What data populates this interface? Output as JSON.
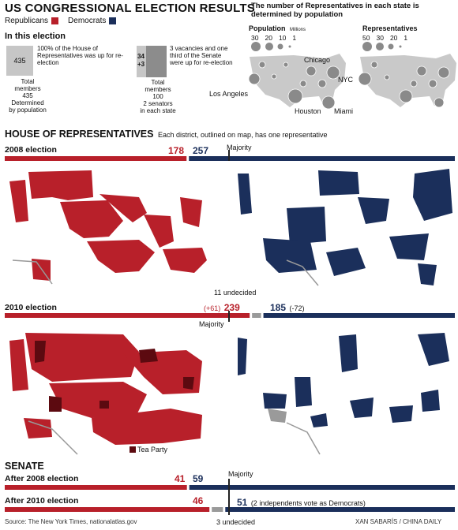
{
  "header": {
    "title": "US CONGRESSIONAL ELECTION RESULTS",
    "legend": {
      "republicans": "Republicans",
      "democrats": "Democrats"
    },
    "subtitle": "The number of Representatives in each state is determined by population"
  },
  "in_this_election": {
    "heading": "In this election",
    "house_box": "435",
    "house_text": "100% of the House of Representatives was up for re-election",
    "house_caption": [
      "Total",
      "members",
      "435",
      "Determined",
      "by population"
    ],
    "senate_box_top": "34",
    "senate_box_bottom": "+3",
    "senate_text": "3 vacancies and one third of the Senate were up for re-election",
    "senate_caption": [
      "Total",
      "members",
      "100",
      "2 senators",
      "in each state"
    ]
  },
  "population_maps": {
    "population_label": "Population",
    "population_unit": "Millions",
    "population_scale": [
      "30",
      "20",
      "10",
      "1"
    ],
    "representatives_label": "Representatives",
    "representatives_scale": [
      "50",
      "30",
      "20",
      "1"
    ],
    "cities": [
      "Chicago",
      "NYC",
      "Los Angeles",
      "Houston",
      "Miami"
    ]
  },
  "colors": {
    "republican": "#b8202a",
    "democrat": "#1b2f5b",
    "tea_party": "#5c0a10",
    "undecided": "#9a9a9a",
    "map_gray": "#8a8a8a"
  },
  "house": {
    "heading": "HOUSE OF REPRESENTATIVES",
    "subheading": "Each district, outlined on map, has one representative",
    "majority_label": "Majority",
    "undecided_label": "11 undecided",
    "tea_party_label": "Tea Party",
    "e2008_label": "2008 election",
    "e2010_label": "2010 election",
    "r2008_text": "178",
    "d2008_text": "257",
    "r2010_change": "(+61)",
    "r2010_text": "239",
    "d2010_text": "185",
    "d2010_change": "(-72)"
  },
  "senate": {
    "heading": "SENATE",
    "majority_label": "Majority",
    "after2008_label": "After 2008 election",
    "after2010_label": "After 2010 election",
    "r2008_text": "41",
    "d2008_text": "59",
    "r2010_text": "46",
    "d2010_text": "51",
    "d2010_note": "(2 independents vote as Democrats)",
    "undecided_label": "3 undecided"
  },
  "footer": {
    "source": "Source: The New York Times, nationalatlas.gov",
    "credit": "XAN SABARÍS / CHINA DAILY"
  },
  "chart_data": [
    {
      "type": "bar",
      "categories": [
        "Republicans",
        "Democrats"
      ],
      "values": [
        178,
        257
      ],
      "total": 435,
      "majority": 218
    },
    {
      "type": "bar",
      "categories": [
        "Republicans",
        "Undecided",
        "Democrats"
      ],
      "values": [
        239,
        11,
        185
      ],
      "total": 435,
      "majority": 218,
      "change": {
        "Republicans": 61,
        "Democrats": -72
      }
    },
    {
      "type": "bar",
      "categories": [
        "Republicans",
        "Democrats"
      ],
      "values": [
        41,
        59
      ],
      "total": 100,
      "majority": 51
    },
    {
      "type": "bar",
      "categories": [
        "Republicans",
        "Undecided",
        "Democrats"
      ],
      "values": [
        46,
        3,
        51
      ],
      "total": 100,
      "majority": 51
    }
  ]
}
